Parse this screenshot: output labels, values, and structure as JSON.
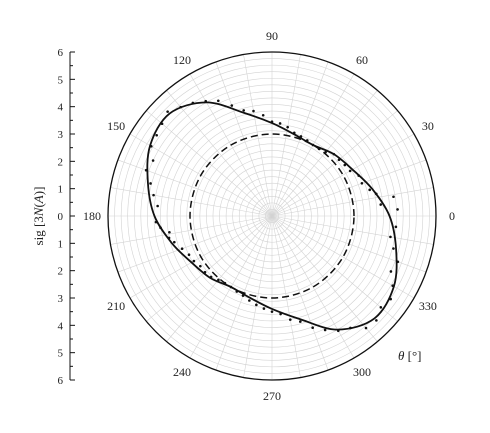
{
  "chart_data": {
    "type": "line",
    "coordinate_system": "polar",
    "title": "",
    "radial_axis": {
      "label_prefix": "sig [3",
      "label_var": "N",
      "label_paren": "(",
      "label_var2": "A",
      "label_suffix": ")]",
      "ticks": [
        "6",
        "5",
        "4",
        "3",
        "2",
        "1",
        "0",
        "1",
        "2",
        "3",
        "4",
        "5",
        "6"
      ],
      "range": [
        0,
        6
      ]
    },
    "angular_axis": {
      "label_var": "θ",
      "label_unit": " [°]",
      "ticks": [
        "0",
        "30",
        "60",
        "90",
        "120",
        "150",
        "180",
        "210",
        "240",
        "270",
        "300",
        "330"
      ],
      "range_deg": [
        0,
        360
      ]
    },
    "grid": true,
    "series": [
      {
        "style": "solid-line",
        "theta_deg": [
          0,
          15,
          30,
          45,
          60,
          75,
          90,
          105,
          120,
          135,
          150,
          165,
          180,
          195,
          210,
          225,
          240,
          255,
          270,
          285,
          300,
          315,
          330,
          345,
          360
        ],
        "r": [
          4.3,
          3.8,
          3.4,
          3.2,
          3.0,
          3.1,
          3.4,
          3.9,
          4.8,
          5.3,
          5.15,
          4.7,
          4.3,
          3.8,
          3.4,
          3.2,
          3.0,
          3.1,
          3.4,
          3.9,
          4.8,
          5.3,
          5.15,
          4.7,
          4.3
        ]
      },
      {
        "style": "dashed-line",
        "theta_deg": [
          0,
          30,
          60,
          90,
          120,
          150,
          180,
          210,
          240,
          270,
          300,
          330,
          360
        ],
        "r": [
          3.0,
          3.0,
          3.0,
          3.0,
          3.0,
          3.0,
          3.0,
          3.0,
          3.0,
          3.0,
          3.0,
          3.0,
          3.0
        ]
      },
      {
        "style": "scatter",
        "theta_deg": [
          3,
          6,
          9,
          12,
          15,
          20,
          25,
          30,
          35,
          40,
          45,
          50,
          55,
          60,
          65,
          70,
          75,
          80,
          85,
          90,
          95,
          100,
          105,
          110,
          115,
          120,
          125,
          130,
          135,
          140,
          145,
          150,
          155,
          160,
          165,
          170,
          175,
          183,
          186,
          189,
          192,
          195,
          200,
          205,
          210,
          215,
          220,
          225,
          230,
          235,
          240,
          245,
          250,
          255,
          260,
          265,
          270,
          275,
          280,
          285,
          290,
          295,
          300,
          305,
          310,
          315,
          320,
          325,
          330,
          335,
          340,
          345,
          350,
          355
        ],
        "r": [
          4.6,
          4.0,
          4.5,
          3.9,
          3.7,
          3.5,
          3.5,
          3.3,
          3.25,
          3.2,
          3.2,
          3.05,
          3.0,
          3.0,
          3.05,
          3.1,
          3.15,
          3.3,
          3.4,
          3.45,
          3.7,
          3.9,
          4.0,
          4.3,
          4.65,
          4.85,
          5.05,
          5.2,
          5.4,
          5.25,
          5.15,
          5.1,
          4.8,
          4.9,
          4.6,
          4.4,
          4.2,
          4.25,
          4.1,
          3.8,
          3.85,
          3.7,
          3.5,
          3.35,
          3.3,
          3.2,
          3.2,
          3.15,
          3.05,
          3.0,
          3.0,
          3.05,
          3.1,
          3.2,
          3.3,
          3.4,
          3.5,
          3.6,
          3.85,
          4.0,
          4.35,
          4.6,
          4.85,
          5.0,
          5.35,
          5.4,
          5.2,
          5.3,
          5.1,
          4.8,
          4.9,
          4.6,
          4.4,
          4.55
        ]
      }
    ]
  }
}
